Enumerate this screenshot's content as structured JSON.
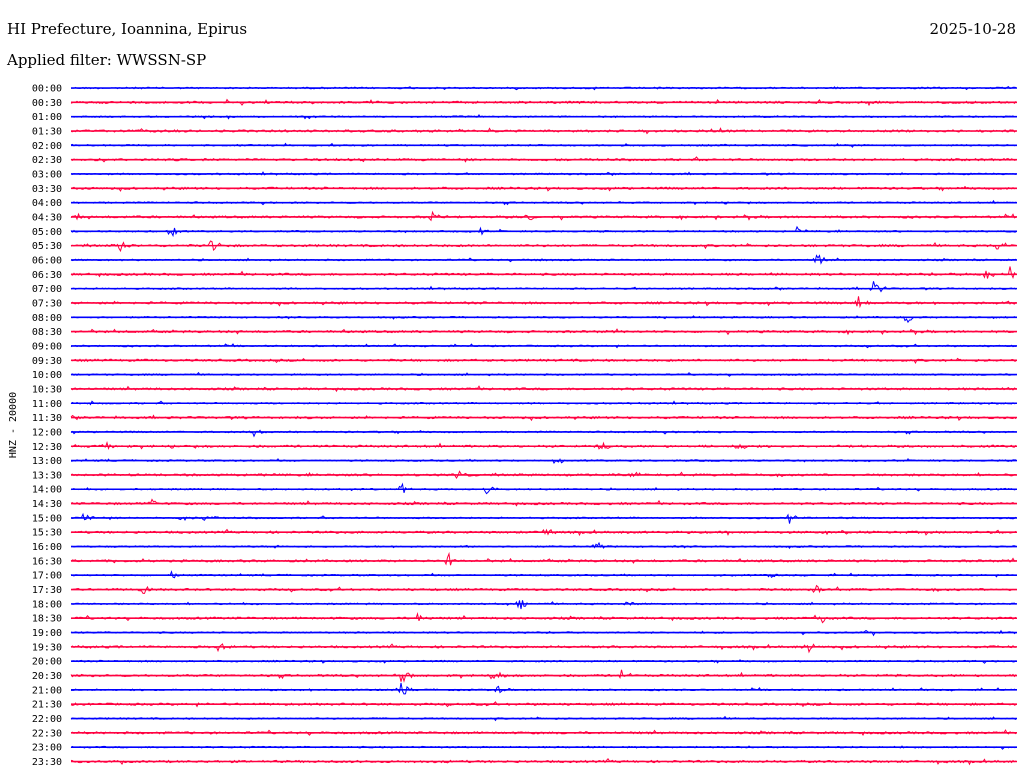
{
  "header": {
    "station": "HI Prefecture, Ioannina, Epirus",
    "date": "2025-10-28",
    "filter_label": "Applied filter: WWSSN-SP"
  },
  "chart_data": {
    "type": "line",
    "title": "HI Prefecture, Ioannina, Epirus",
    "ylabel": "HNZ - 20000",
    "row_labels": [
      "00:00",
      "00:30",
      "01:00",
      "01:30",
      "02:00",
      "02:30",
      "03:00",
      "03:30",
      "04:00",
      "04:30",
      "05:00",
      "05:30",
      "06:00",
      "06:30",
      "07:00",
      "07:30",
      "08:00",
      "08:30",
      "09:00",
      "09:30",
      "10:00",
      "10:30",
      "11:00",
      "11:30",
      "12:00",
      "12:30",
      "13:00",
      "13:30",
      "14:00",
      "14:30",
      "15:00",
      "15:30",
      "16:00",
      "16:30",
      "17:00",
      "17:30",
      "18:00",
      "18:30",
      "19:00",
      "19:30",
      "20:00",
      "20:30",
      "21:00",
      "21:30",
      "22:00",
      "22:30",
      "23:00",
      "23:30"
    ],
    "series": [
      {
        "color": "#0000ff"
      },
      {
        "color": "#ff0040"
      }
    ],
    "grid": false
  }
}
